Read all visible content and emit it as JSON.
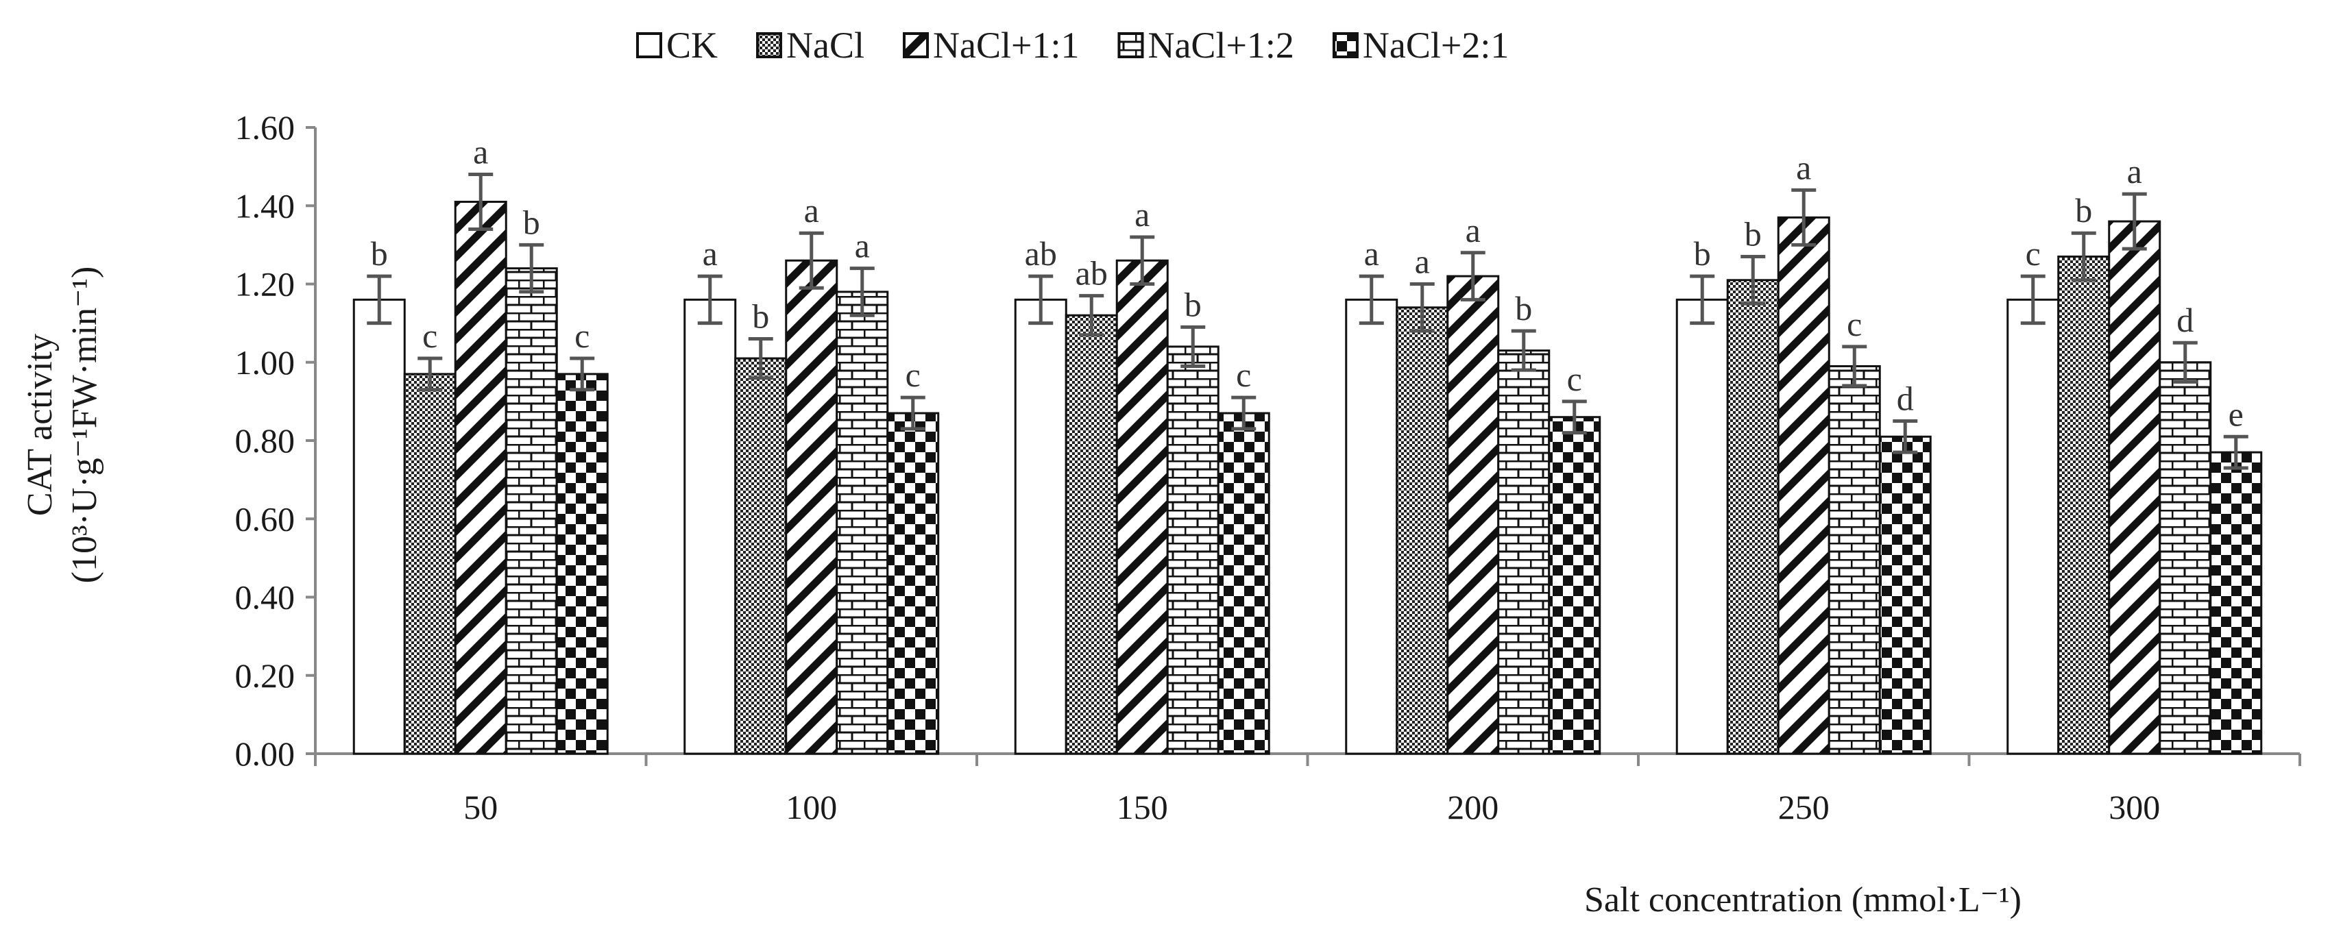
{
  "chart_data": {
    "type": "bar",
    "title": "",
    "xlabel": "Salt concentration (mmol·L⁻¹)",
    "ylabel_line1": "CAT activity",
    "ylabel_line2": "(10³·U·g⁻¹FW·min⁻¹)",
    "ylim": [
      0,
      1.6
    ],
    "ytick_step": 0.2,
    "yticks": [
      "0.00",
      "0.20",
      "0.40",
      "0.60",
      "0.80",
      "1.00",
      "1.20",
      "1.40",
      "1.60"
    ],
    "categories": [
      "50",
      "100",
      "150",
      "200",
      "250",
      "300"
    ],
    "legend_position": "top",
    "grid": false,
    "series": [
      {
        "name": "CK",
        "pattern": "none",
        "values": [
          1.16,
          1.16,
          1.16,
          1.16,
          1.16,
          1.16
        ],
        "errors": [
          0.06,
          0.06,
          0.06,
          0.06,
          0.06,
          0.06
        ],
        "labels": [
          "b",
          "a",
          "ab",
          "a",
          "b",
          "c"
        ]
      },
      {
        "name": "NaCl",
        "pattern": "dots",
        "values": [
          0.97,
          1.01,
          1.12,
          1.14,
          1.21,
          1.27
        ],
        "errors": [
          0.04,
          0.05,
          0.05,
          0.06,
          0.06,
          0.06
        ],
        "labels": [
          "c",
          "b",
          "ab",
          "a",
          "b",
          "b"
        ]
      },
      {
        "name": "NaCl+1:1",
        "pattern": "diagonal",
        "values": [
          1.41,
          1.26,
          1.26,
          1.22,
          1.37,
          1.36
        ],
        "errors": [
          0.07,
          0.07,
          0.06,
          0.06,
          0.07,
          0.07
        ],
        "labels": [
          "a",
          "a",
          "a",
          "a",
          "a",
          "a"
        ]
      },
      {
        "name": "NaCl+1:2",
        "pattern": "brick",
        "values": [
          1.24,
          1.18,
          1.04,
          1.03,
          0.99,
          1.0
        ],
        "errors": [
          0.06,
          0.06,
          0.05,
          0.05,
          0.05,
          0.05
        ],
        "labels": [
          "b",
          "a",
          "b",
          "b",
          "c",
          "d"
        ]
      },
      {
        "name": "NaCl+2:1",
        "pattern": "checker",
        "values": [
          0.97,
          0.87,
          0.87,
          0.86,
          0.81,
          0.77
        ],
        "errors": [
          0.04,
          0.04,
          0.04,
          0.04,
          0.04,
          0.04
        ],
        "labels": [
          "c",
          "c",
          "c",
          "c",
          "d",
          "e"
        ]
      }
    ]
  }
}
